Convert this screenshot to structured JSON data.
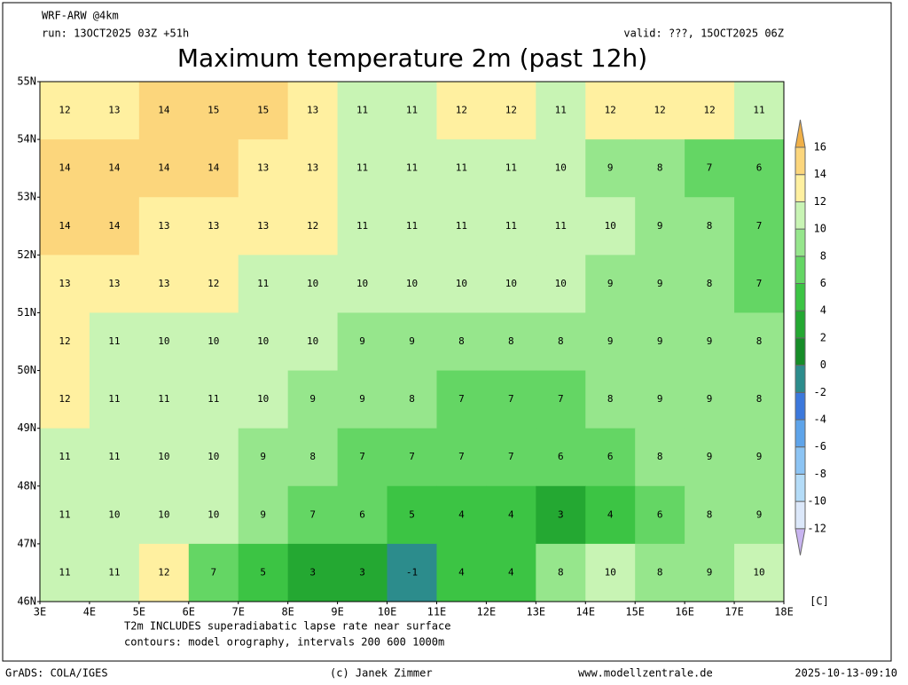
{
  "header": {
    "model": "WRF-ARW @4km",
    "run": "run: 13OCT2025 03Z +51h",
    "valid": "valid: ???, 15OCT2025 06Z",
    "title": "Maximum temperature 2m (past 12h)"
  },
  "map": {
    "lat_labels": [
      "55N",
      "54N",
      "53N",
      "52N",
      "51N",
      "50N",
      "49N",
      "48N",
      "47N",
      "46N"
    ],
    "lon_labels": [
      "3E",
      "4E",
      "5E",
      "6E",
      "7E",
      "8E",
      "9E",
      "10E",
      "11E",
      "12E",
      "13E",
      "14E",
      "15E",
      "16E",
      "17E",
      "18E"
    ],
    "field": [
      [
        12,
        13,
        14,
        15,
        15,
        13,
        11,
        11,
        12,
        12,
        11,
        12,
        12,
        12,
        11
      ],
      [
        14,
        14,
        14,
        14,
        13,
        13,
        11,
        11,
        11,
        11,
        10,
        9,
        8,
        7,
        6
      ],
      [
        14,
        14,
        13,
        13,
        13,
        12,
        11,
        11,
        11,
        11,
        11,
        10,
        9,
        8,
        7
      ],
      [
        13,
        13,
        13,
        12,
        11,
        10,
        10,
        10,
        10,
        10,
        10,
        9,
        9,
        8,
        7
      ],
      [
        12,
        11,
        10,
        10,
        10,
        10,
        9,
        9,
        8,
        8,
        8,
        9,
        9,
        9,
        8
      ],
      [
        12,
        11,
        11,
        11,
        10,
        9,
        9,
        8,
        7,
        7,
        7,
        8,
        9,
        9,
        8
      ],
      [
        11,
        11,
        10,
        10,
        9,
        8,
        7,
        7,
        7,
        7,
        6,
        6,
        8,
        9,
        9
      ],
      [
        11,
        10,
        10,
        10,
        9,
        7,
        6,
        5,
        4,
        4,
        3,
        4,
        6,
        8,
        9
      ],
      [
        11,
        11,
        12,
        7,
        5,
        3,
        3,
        -1,
        4,
        4,
        8,
        10,
        8,
        9,
        10
      ]
    ]
  },
  "colorbar": {
    "levels": [
      -12,
      -10,
      -8,
      -6,
      -4,
      -2,
      0,
      2,
      4,
      6,
      8,
      10,
      12,
      14,
      16
    ],
    "colors": [
      "#c8b4f0",
      "#dce8fa",
      "#b4dcf8",
      "#8cc4f4",
      "#5ea4ea",
      "#3c78dc",
      "#2c8c8c",
      "#168c28",
      "#24a832",
      "#3cc444",
      "#64d664",
      "#96e68c",
      "#c8f4b4",
      "#fff0a0",
      "#fcd67c",
      "#f0b048"
    ],
    "unit": "[C]"
  },
  "notes": [
    "T2m INCLUDES superadiabatic lapse rate near surface",
    "contours: model orography, intervals 200 600 1000m"
  ],
  "footer": {
    "software": "GrADS: COLA/IGES",
    "credit": "(c) Janek Zimmer",
    "site": "www.modellzentrale.de",
    "timestamp": "2025-10-13-09:10"
  }
}
